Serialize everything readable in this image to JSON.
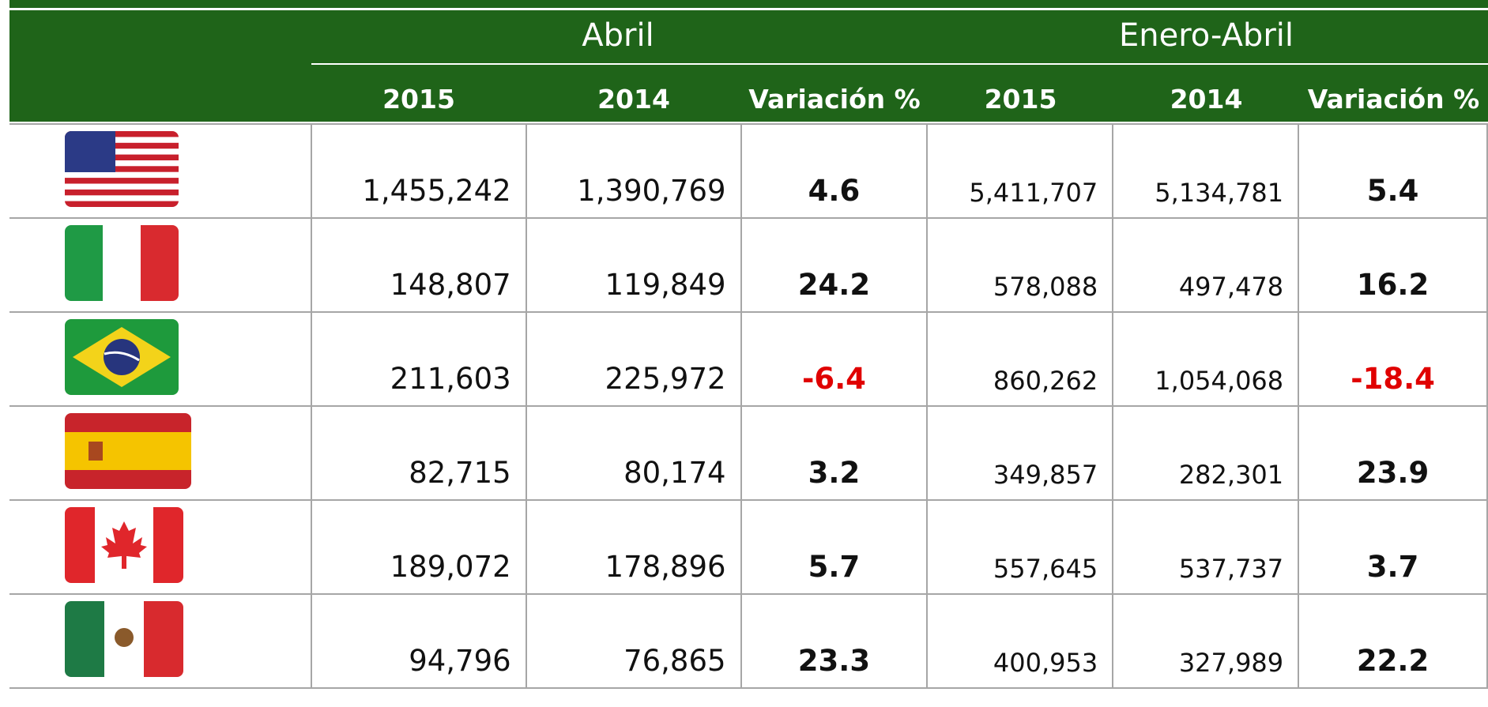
{
  "header": {
    "groups": [
      "Abril",
      "Enero-Abril"
    ],
    "columns": [
      "2015",
      "2014",
      "Variación %",
      "2015",
      "2014",
      "Variación %"
    ]
  },
  "table": {
    "rows": [
      [
        "1,455,242",
        "1,390,769",
        4.6,
        "5,411,707",
        "5,134,781",
        5.4
      ],
      [
        "148,807",
        "119,849",
        24.2,
        "578,088",
        "497,478",
        16.2
      ],
      [
        "211,603",
        "225,972",
        -6.4,
        "860,262",
        "1,054,068",
        -18.4
      ],
      [
        "82,715",
        "80,174",
        3.2,
        "349,857",
        "282,301",
        23.9
      ],
      [
        "189,072",
        "178,896",
        5.7,
        "557,645",
        "537,737",
        3.7
      ],
      [
        "94,796",
        "76,865",
        23.3,
        "400,953",
        "327,989",
        22.2
      ]
    ]
  }
}
